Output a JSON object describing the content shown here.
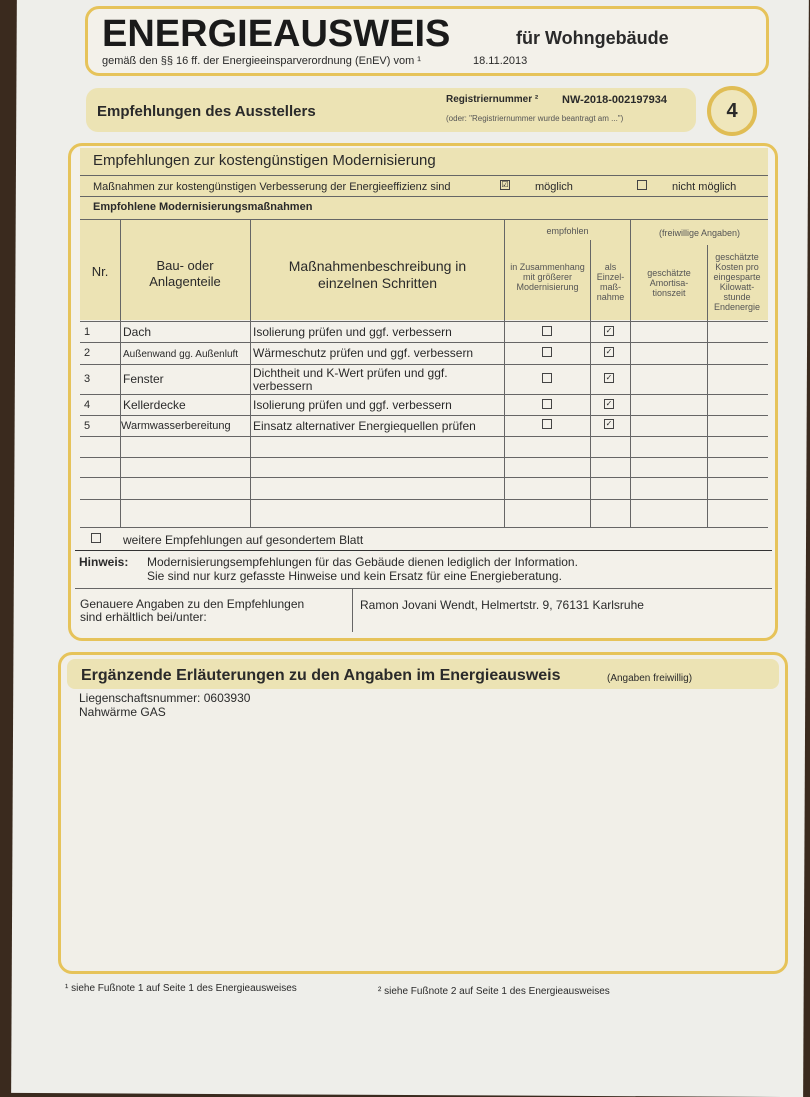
{
  "header": {
    "title": "ENERGIEAUSWEIS",
    "title_suffix": "für Wohngebäude",
    "subtitle": "gemäß den §§ 16 ff. der Energieeinsparverordnung (EnEV) vom ¹",
    "date": "18.11.2013"
  },
  "section": {
    "title": "Empfehlungen des Ausstellers",
    "reg_label": "Registriernummer ²",
    "reg_value": "NW-2018-002197934",
    "reg_note": "(oder: \"Registriernummer wurde beantragt am ...\")",
    "page_number": "4"
  },
  "modernisation": {
    "title": "Empfehlungen zur kostengünstigen Modernisierung",
    "measures_text": "Maßnahmen zur kostengünstigen Verbesserung der Energieeffizienz sind",
    "possible_label": "möglich",
    "possible_checked": true,
    "not_possible_label": "nicht möglich",
    "not_possible_checked": false,
    "recommended_title": "Empfohlene Modernisierungsmaßnahmen",
    "columns": {
      "nr": "Nr.",
      "part": "Bau- oder Anlagenteile",
      "desc": "Maßnahmenbeschreibung in einzelnen Schritten",
      "recommended": "empfohlen",
      "in_context": "in Zusammenhang mit größerer Modernisierung",
      "single": "als Einzel-maß-nahme",
      "optional": "(freiwillige Angaben)",
      "amortisation": "geschätzte Amortisa-tionszeit",
      "costs": "geschätzte Kosten pro eingesparte Kilowatt-stunde Endenergie"
    },
    "rows": [
      {
        "nr": "1",
        "part": "Dach",
        "desc": "Isolierung prüfen und ggf. verbessern",
        "in_context": false,
        "single": true
      },
      {
        "nr": "2",
        "part": "Außenwand gg. Außenluft",
        "desc": "Wärmeschutz prüfen und ggf. verbessern",
        "in_context": false,
        "single": true
      },
      {
        "nr": "3",
        "part": "Fenster",
        "desc": "Dichtheit und K-Wert prüfen und ggf. verbessern",
        "in_context": false,
        "single": true
      },
      {
        "nr": "4",
        "part": "Kellerdecke",
        "desc": "Isolierung prüfen und ggf. verbessern",
        "in_context": false,
        "single": true
      },
      {
        "nr": "5",
        "part": "Warmwasserbereitung",
        "desc": "Einsatz alternativer Energiequellen prüfen",
        "in_context": false,
        "single": true
      }
    ],
    "more_label": "weitere Empfehlungen auf gesondertem Blatt",
    "hint_label": "Hinweis:",
    "hint_text1": "Modernisierungsempfehlungen für das Gebäude dienen lediglich der Information.",
    "hint_text2": "Sie sind nur kurz gefasste Hinweise und kein Ersatz für eine Energieberatung.",
    "contact_label1": "Genauere Angaben zu den Empfehlungen",
    "contact_label2": "sind erhältlich bei/unter:",
    "contact_value": "Ramon Jovani Wendt, Helmertstr. 9, 76131 Karlsruhe"
  },
  "notes": {
    "title": "Ergänzende Erläuterungen zu den Angaben im Energieausweis",
    "optional": "(Angaben freiwillig)",
    "line1": "Liegenschaftsnummer: 0603930",
    "line2": "Nahwärme GAS"
  },
  "footnotes": {
    "f1": "¹ siehe Fußnote 1 auf Seite 1 des Energieausweises",
    "f2": "² siehe Fußnote 2 auf Seite 1 des Energieausweises"
  }
}
